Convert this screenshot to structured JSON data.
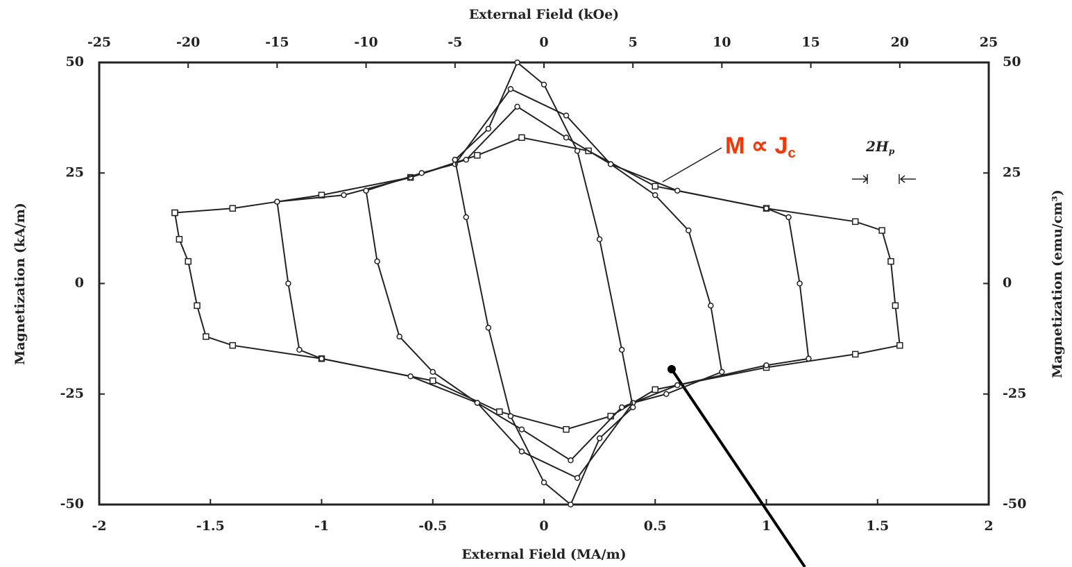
{
  "chart_data": {
    "type": "line",
    "x_label": "External Field (MA/m)",
    "x2_label": "External Field (kOe)",
    "y_label": "Magnetization (kA/m)",
    "y2_label": "Magnetization (emu/cm³)",
    "xlim": [
      -2,
      2
    ],
    "xticks": [
      -2,
      -1.5,
      -1,
      -0.5,
      0,
      0.5,
      1,
      1.5,
      2
    ],
    "x2lim": [
      -25,
      25
    ],
    "x2ticks": [
      -25,
      -20,
      -15,
      -10,
      -5,
      0,
      5,
      10,
      15,
      20,
      25
    ],
    "ylim": [
      -50,
      50
    ],
    "yticks": [
      -50,
      -25,
      0,
      25,
      50
    ],
    "y2lim": [
      -50,
      50
    ],
    "y2ticks": [
      -50,
      -25,
      0,
      25,
      50
    ],
    "color": "#222222",
    "annotations": [
      {
        "text": "M ∝ J",
        "sub": "c",
        "color": "#ff3300"
      },
      {
        "text": "2H",
        "sub": "p",
        "color": "#222222"
      }
    ],
    "series": [
      {
        "marker": "square",
        "x": [
          -1.66,
          -1.4,
          -1.0,
          -0.6,
          -0.3,
          -0.1,
          0.2,
          0.5,
          1.0,
          1.4,
          1.52,
          1.56,
          1.58,
          1.6,
          1.4,
          1.0,
          0.5,
          0.3,
          0.1,
          -0.2,
          -0.5,
          -1.0,
          -1.4,
          -1.52,
          -1.56,
          -1.6,
          -1.64,
          -1.66
        ],
        "values": [
          16,
          17,
          20,
          24,
          29,
          33,
          30,
          22,
          17,
          14,
          12,
          5,
          -5,
          -14,
          -16,
          -19,
          -24,
          -30,
          -33,
          -29,
          -22,
          -17,
          -14,
          -12,
          -5,
          5,
          10,
          16
        ]
      },
      {
        "marker": "circle",
        "x": [
          -1.2,
          -0.9,
          -0.6,
          -0.35,
          -0.12,
          0.1,
          0.3,
          0.6,
          1.0,
          1.1,
          1.15,
          1.19,
          1.0,
          0.6,
          0.35,
          0.12,
          -0.1,
          -0.3,
          -0.6,
          -1.0,
          -1.1,
          -1.15,
          -1.2
        ],
        "values": [
          18.5,
          20,
          24,
          28,
          40,
          33,
          27,
          21,
          17,
          15,
          0,
          -17,
          -18.5,
          -23,
          -28,
          -40,
          -33,
          -27,
          -21,
          -17,
          -15,
          0,
          18.5
        ]
      },
      {
        "marker": "circle",
        "x": [
          -0.8,
          -0.55,
          -0.4,
          -0.15,
          0.1,
          0.3,
          0.5,
          0.65,
          0.75,
          0.8,
          0.55,
          0.4,
          0.15,
          -0.1,
          -0.3,
          -0.5,
          -0.65,
          -0.75,
          -0.8
        ],
        "values": [
          21,
          25,
          27,
          44,
          38,
          27,
          20,
          12,
          -5,
          -20,
          -25,
          -27,
          -44,
          -38,
          -27,
          -20,
          -12,
          5,
          21
        ]
      },
      {
        "marker": "circle",
        "x": [
          -0.4,
          -0.25,
          -0.12,
          0.0,
          0.15,
          0.25,
          0.35,
          0.4,
          0.25,
          0.12,
          0.0,
          -0.15,
          -0.25,
          -0.35,
          -0.4
        ],
        "values": [
          28,
          35,
          50,
          45,
          30,
          10,
          -15,
          -28,
          -35,
          -50,
          -45,
          -30,
          -10,
          15,
          28
        ]
      }
    ]
  }
}
